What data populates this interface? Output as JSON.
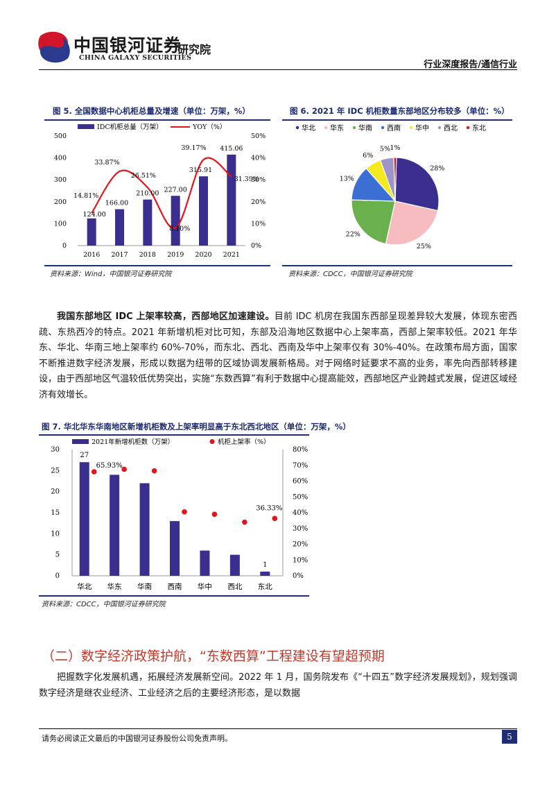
{
  "header": {
    "company_cn": "中国银河证券",
    "institute": "研究院",
    "company_en": "CHINA GALAXY SECURITIES",
    "report_type": "行业深度报告/通信行业"
  },
  "figure5": {
    "title": "图 5. 全国数据中心机柜总量及增速（单位：万架，%）",
    "source": "资料来源：Wind，中国银河证券研究院",
    "bar_legend": "IDC机柜总量（万架）",
    "line_legend": "YOY（%）"
  },
  "figure6": {
    "title": "图 6. 2021 年 IDC 机柜数量东部地区分布较多（单位：%）",
    "source": "资料来源：CDCC，中国银河证券研究院"
  },
  "figure7": {
    "title": "图 7. 华北华东华南地区新增机柜数及上架率明显高于东北西北地区（单位：万架，%）",
    "source": "资料来源：CDCC，中国银河证券研究院",
    "bar_legend": "2021年新增机柜数（万架）",
    "dot_legend": "机柜上架率（%）"
  },
  "paragraph1": {
    "bold": "我国东部地区 IDC 上架率较高，西部地区加速建设。",
    "text": "目前 IDC 机房在我国东西部呈现差异较大发展，体现东密西疏、东热西冷的特点。2021 年新增机柜对比可知，东部及沿海地区数据中心上架率高，西部上架率较低。2021 年华东、华北、华南三地上架率约 60%-70%，而东北、西北、西南及华中上架率仅有 30%-40%。在政策布局方面，国家不断推进数字经济发展，形成以数据为纽带的区域协调发展新格局。对于网络时延要求不高的业务，率先向西部转移建设，由于西部地区气温较低优势突出，实施“东数西算”有利于数据中心提高能效，西部地区产业跨越式发展，促进区域经济有效增长。"
  },
  "section2": {
    "heading": "（二）数字经济政策护航，“东数西算”工程建设有望超预期",
    "text": "把握数字化发展机遇，拓展经济发展新空间。2022 年 1 月，国务院发布《“十四五”数字经济发展规划》，规划强调数字经济是继农业经济、工业经济之后的主要经济形态，是以数据"
  },
  "footer": {
    "disclaimer": "请务必阅读正文最后的中国银河证券股份公司免责声明。",
    "page": "5"
  },
  "colors": {
    "bar": "#3a2f8f",
    "line": "#e0161b",
    "title_blue": "#1c2a6e",
    "heading_red": "#c0392b"
  },
  "chart_data": [
    {
      "id": "fig5",
      "type": "bar",
      "categories": [
        "2016",
        "2017",
        "2018",
        "2019",
        "2020",
        "2021"
      ],
      "series": [
        {
          "name": "IDC机柜总量（万架）",
          "type": "bar",
          "axis": "left",
          "values": [
            124.0,
            166.0,
            210.0,
            227.0,
            315.91,
            415.06
          ]
        },
        {
          "name": "YOY（%）",
          "type": "line",
          "axis": "right",
          "values": [
            14.81,
            33.87,
            26.51,
            8.1,
            39.17,
            31.39
          ]
        }
      ],
      "bar_labels": [
        "124.00",
        "166.00",
        "210.00",
        "227.00",
        "315.91",
        "415.06"
      ],
      "line_labels": [
        "14.81%",
        "33.87%",
        "26.51%",
        "8.10%",
        "39.17%",
        "31.39%"
      ],
      "ylim": [
        0,
        500
      ],
      "yticks": [
        "0",
        "100",
        "200",
        "300",
        "400",
        "500"
      ],
      "y2lim": [
        0,
        50
      ],
      "y2ticks": [
        "0%",
        "10%",
        "20%",
        "30%",
        "40%",
        "50%"
      ],
      "legend": "top"
    },
    {
      "id": "fig6",
      "type": "pie",
      "labels": [
        "华北",
        "华东",
        "华南",
        "西南",
        "华中",
        "西北",
        "东北"
      ],
      "values": [
        28,
        25,
        22,
        13,
        6,
        5,
        1
      ],
      "value_labels": [
        "28%",
        "25%",
        "22%",
        "13%",
        "6%",
        "5%",
        "1%"
      ],
      "colors": [
        "#3a2f8f",
        "#f7bcc0",
        "#6ab04c",
        "#3b6fd4",
        "#f4ea1f",
        "#9f93c8",
        "#e0161b"
      ],
      "legend": "top"
    },
    {
      "id": "fig7",
      "type": "bar",
      "categories": [
        "华北",
        "华东",
        "华南",
        "西南",
        "华中",
        "西北",
        "东北"
      ],
      "series": [
        {
          "name": "2021年新增机柜数（万架）",
          "type": "bar",
          "axis": "left",
          "values": [
            27,
            24,
            22,
            13,
            6,
            5,
            1
          ]
        },
        {
          "name": "机柜上架率（%）",
          "type": "scatter",
          "axis": "right",
          "values": [
            65.93,
            67.5,
            66.5,
            40.5,
            39.0,
            34.0,
            36.33
          ]
        }
      ],
      "bar_labels": [
        "27",
        "",
        "",
        "",
        "",
        "",
        "1"
      ],
      "dot_labels": [
        "65.93%",
        "",
        "",
        "",
        "",
        "",
        "36.33%"
      ],
      "ylim": [
        0,
        30
      ],
      "yticks": [
        "0",
        "5",
        "10",
        "15",
        "20",
        "25",
        "30"
      ],
      "y2lim": [
        0,
        80
      ],
      "y2ticks": [
        "0%",
        "10%",
        "20%",
        "30%",
        "40%",
        "50%",
        "60%",
        "70%",
        "80%"
      ],
      "legend": "top"
    }
  ]
}
